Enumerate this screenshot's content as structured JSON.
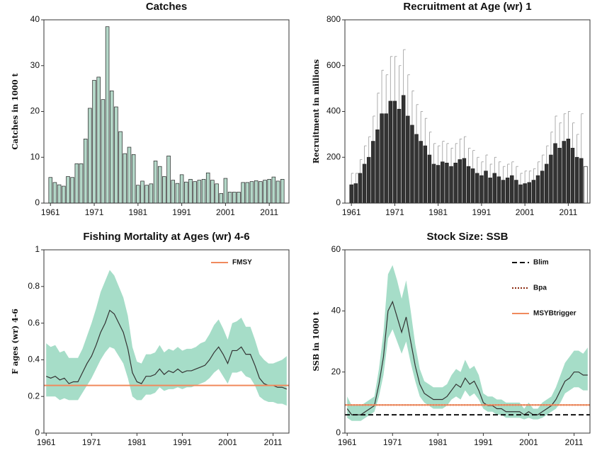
{
  "chart_data": [
    {
      "type": "bar",
      "title": "Catches",
      "ylabel": "Catches in 1000 t",
      "x": [
        1961,
        1962,
        1963,
        1964,
        1965,
        1966,
        1967,
        1968,
        1969,
        1970,
        1971,
        1972,
        1973,
        1974,
        1975,
        1976,
        1977,
        1978,
        1979,
        1980,
        1981,
        1982,
        1983,
        1984,
        1985,
        1986,
        1987,
        1988,
        1989,
        1990,
        1991,
        1992,
        1993,
        1994,
        1995,
        1996,
        1997,
        1998,
        1999,
        2000,
        2001,
        2002,
        2003,
        2004,
        2005,
        2006,
        2007,
        2008,
        2009,
        2010,
        2011,
        2012,
        2013,
        2014
      ],
      "values": [
        5.6,
        4.5,
        4.0,
        3.7,
        5.8,
        5.6,
        8.6,
        8.6,
        14,
        20.7,
        26.8,
        27.5,
        22.6,
        38.5,
        24.5,
        21,
        15.6,
        10.8,
        12.2,
        10.6,
        3.9,
        4.8,
        3.9,
        4.2,
        9.2,
        8,
        5.8,
        10.3,
        5,
        4.3,
        6.2,
        4.6,
        5.2,
        4.7,
        5,
        5.2,
        6.6,
        5,
        4.2,
        2.1,
        5.4,
        2.4,
        2.4,
        2.4,
        4.5,
        4.5,
        4.7,
        4.9,
        4.7,
        5,
        5.2,
        5.7,
        4.8,
        5.2
      ],
      "color": "#b4d7c8",
      "xlim": [
        1959.5,
        2015.5
      ],
      "xticks": [
        1961,
        1971,
        1981,
        1991,
        2001,
        2011
      ],
      "ylim": [
        0,
        40
      ],
      "yticks": [
        0,
        10,
        20,
        30,
        40
      ]
    },
    {
      "type": "bar",
      "title": "Recruitment at Age (wr) 1",
      "ylabel": "Recruitment in millions",
      "x": [
        1961,
        1962,
        1963,
        1964,
        1965,
        1966,
        1967,
        1968,
        1969,
        1970,
        1971,
        1972,
        1973,
        1974,
        1975,
        1976,
        1977,
        1978,
        1979,
        1980,
        1981,
        1982,
        1983,
        1984,
        1985,
        1986,
        1987,
        1988,
        1989,
        1990,
        1991,
        1992,
        1993,
        1994,
        1995,
        1996,
        1997,
        1998,
        1999,
        2000,
        2001,
        2002,
        2003,
        2004,
        2005,
        2006,
        2007,
        2008,
        2009,
        2010,
        2011,
        2012,
        2013,
        2014,
        2015
      ],
      "values": [
        80,
        85,
        130,
        170,
        200,
        270,
        320,
        390,
        390,
        445,
        445,
        410,
        470,
        380,
        340,
        300,
        270,
        250,
        210,
        170,
        165,
        180,
        175,
        160,
        175,
        190,
        195,
        160,
        150,
        130,
        120,
        140,
        110,
        130,
        115,
        100,
        110,
        120,
        100,
        80,
        85,
        90,
        100,
        120,
        140,
        170,
        210,
        260,
        240,
        270,
        280,
        240,
        200,
        195,
        160
      ],
      "upper": [
        130,
        130,
        190,
        250,
        290,
        380,
        480,
        580,
        560,
        640,
        640,
        600,
        670,
        560,
        490,
        430,
        400,
        370,
        310,
        260,
        250,
        270,
        260,
        240,
        260,
        280,
        290,
        240,
        230,
        200,
        180,
        210,
        170,
        200,
        180,
        160,
        170,
        180,
        160,
        130,
        140,
        140,
        150,
        180,
        210,
        250,
        310,
        380,
        350,
        390,
        400,
        350,
        300,
        390,
        null
      ],
      "color": "#333333",
      "xlim": [
        1959.5,
        2016
      ],
      "xticks": [
        1961,
        1971,
        1981,
        1991,
        2001,
        2011
      ],
      "ylim": [
        0,
        800
      ],
      "yticks": [
        0,
        200,
        400,
        600,
        800
      ]
    },
    {
      "type": "line",
      "title": "Fishing Mortality at Ages (wr) 4-6",
      "ylabel": "F ages (wr) 4-6",
      "x": [
        1961,
        1962,
        1963,
        1964,
        1965,
        1966,
        1967,
        1968,
        1969,
        1970,
        1971,
        1972,
        1973,
        1974,
        1975,
        1976,
        1977,
        1978,
        1979,
        1980,
        1981,
        1982,
        1983,
        1984,
        1985,
        1986,
        1987,
        1988,
        1989,
        1990,
        1991,
        1992,
        1993,
        1994,
        1995,
        1996,
        1997,
        1998,
        1999,
        2000,
        2001,
        2002,
        2003,
        2004,
        2005,
        2006,
        2007,
        2008,
        2009,
        2010,
        2011,
        2012,
        2013,
        2014
      ],
      "series": [
        {
          "color": "#333333",
          "band_color": "#a6ddc8",
          "values": [
            0.31,
            0.3,
            0.31,
            0.29,
            0.3,
            0.27,
            0.28,
            0.28,
            0.33,
            0.38,
            0.42,
            0.48,
            0.55,
            0.6,
            0.67,
            0.65,
            0.6,
            0.55,
            0.46,
            0.33,
            0.28,
            0.27,
            0.31,
            0.31,
            0.32,
            0.35,
            0.32,
            0.34,
            0.33,
            0.35,
            0.33,
            0.34,
            0.34,
            0.35,
            0.36,
            0.37,
            0.4,
            0.44,
            0.47,
            0.43,
            0.38,
            0.45,
            0.45,
            0.47,
            0.43,
            0.43,
            0.37,
            0.3,
            0.27,
            0.26,
            0.26,
            0.25,
            0.25,
            0.24
          ],
          "low": [
            0.2,
            0.2,
            0.2,
            0.18,
            0.19,
            0.18,
            0.18,
            0.18,
            0.22,
            0.26,
            0.3,
            0.35,
            0.4,
            0.44,
            0.47,
            0.46,
            0.42,
            0.38,
            0.3,
            0.2,
            0.18,
            0.18,
            0.21,
            0.21,
            0.22,
            0.25,
            0.23,
            0.24,
            0.24,
            0.25,
            0.24,
            0.25,
            0.25,
            0.26,
            0.27,
            0.28,
            0.3,
            0.33,
            0.35,
            0.31,
            0.27,
            0.33,
            0.33,
            0.34,
            0.31,
            0.3,
            0.26,
            0.2,
            0.18,
            0.17,
            0.17,
            0.16,
            0.16,
            0.15
          ],
          "high": [
            0.49,
            0.47,
            0.48,
            0.44,
            0.45,
            0.41,
            0.41,
            0.41,
            0.46,
            0.53,
            0.6,
            0.68,
            0.77,
            0.83,
            0.89,
            0.86,
            0.8,
            0.74,
            0.64,
            0.47,
            0.39,
            0.38,
            0.43,
            0.43,
            0.44,
            0.48,
            0.44,
            0.46,
            0.45,
            0.47,
            0.45,
            0.46,
            0.46,
            0.47,
            0.49,
            0.5,
            0.54,
            0.59,
            0.62,
            0.57,
            0.51,
            0.6,
            0.61,
            0.63,
            0.58,
            0.58,
            0.51,
            0.43,
            0.4,
            0.38,
            0.38,
            0.39,
            0.4,
            0.42
          ]
        }
      ],
      "reference_lines": [
        {
          "name": "FMSY",
          "value": 0.26,
          "color": "#f08a5d",
          "style": "solid"
        }
      ],
      "legend": "upper right",
      "xlim": [
        1960.5,
        2014.5
      ],
      "xticks": [
        1961,
        1971,
        1981,
        1991,
        2001,
        2011
      ],
      "ylim": [
        0,
        1
      ],
      "yticks": [
        0,
        0.2,
        0.4,
        0.6,
        0.8,
        1
      ]
    },
    {
      "type": "line",
      "title": "Stock Size: SSB",
      "ylabel": "SSB in 1000 t",
      "x": [
        1961,
        1962,
        1963,
        1964,
        1965,
        1966,
        1967,
        1968,
        1969,
        1970,
        1971,
        1972,
        1973,
        1974,
        1975,
        1976,
        1977,
        1978,
        1979,
        1980,
        1981,
        1982,
        1983,
        1984,
        1985,
        1986,
        1987,
        1988,
        1989,
        1990,
        1991,
        1992,
        1993,
        1994,
        1995,
        1996,
        1997,
        1998,
        1999,
        2000,
        2001,
        2002,
        2003,
        2004,
        2005,
        2006,
        2007,
        2008,
        2009,
        2010,
        2011,
        2012,
        2013,
        2014
      ],
      "series": [
        {
          "color": "#333333",
          "band_color": "#a6ddc8",
          "values": [
            8,
            6,
            6,
            6,
            7,
            8,
            9,
            16,
            25,
            40,
            43,
            38,
            33,
            38,
            30,
            22,
            16,
            13,
            12,
            11,
            11,
            11,
            12,
            14,
            16,
            15,
            18,
            16,
            17,
            14,
            10,
            9,
            9,
            8,
            8,
            7,
            7,
            7,
            7,
            6,
            7,
            6,
            6,
            7,
            8,
            9,
            11,
            14,
            17,
            18,
            20,
            20,
            19,
            19
          ],
          "low": [
            5,
            4,
            4,
            4,
            5,
            6,
            7,
            12,
            19,
            31,
            34,
            30,
            26,
            30,
            23,
            17,
            12,
            10,
            9,
            8,
            8,
            8,
            9,
            11,
            12,
            11,
            14,
            12,
            13,
            11,
            8,
            7,
            7,
            6,
            6,
            5,
            5,
            5,
            5,
            4.5,
            5,
            4.5,
            4.5,
            5,
            6,
            7,
            8,
            10,
            13,
            14,
            15,
            15,
            14,
            14
          ],
          "high": [
            12,
            9,
            9,
            9,
            10,
            11,
            12,
            21,
            33,
            52,
            55,
            50,
            44,
            50,
            40,
            29,
            21,
            17,
            16,
            15,
            15,
            15,
            16,
            19,
            21,
            20,
            24,
            21,
            22,
            19,
            13,
            12,
            12,
            11,
            11,
            10,
            10,
            10,
            10,
            8,
            10,
            8,
            8,
            10,
            11,
            12,
            15,
            19,
            23,
            25,
            27,
            27,
            26,
            28
          ]
        }
      ],
      "reference_lines": [
        {
          "name": "Blim",
          "value": 6,
          "color": "#111111",
          "style": "dashed"
        },
        {
          "name": "Bpa",
          "value": 9.2,
          "color": "#8b2a10",
          "style": "dotted"
        },
        {
          "name": "MSYBtrigger",
          "value": 9.2,
          "color": "#f08a5d",
          "style": "solid"
        }
      ],
      "legend": "upper right",
      "xlim": [
        1960.5,
        2014.5
      ],
      "xticks": [
        1961,
        1971,
        1981,
        1991,
        2001,
        2011
      ],
      "ylim": [
        0,
        60
      ],
      "yticks": [
        0,
        20,
        40,
        60
      ]
    }
  ]
}
